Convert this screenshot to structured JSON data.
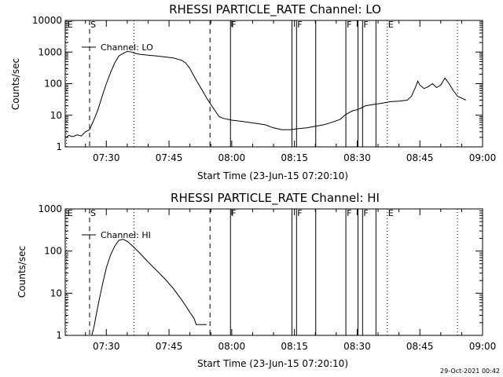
{
  "chart_data": [
    {
      "type": "line",
      "title": "RHESSI PARTICLE_RATE Channel: LO",
      "xlabel": "Start Time (23-Jun-15 07:20:10)",
      "ylabel": "Counts/sec",
      "yscale": "log",
      "ylim": [
        1,
        10000
      ],
      "xlim_minutes": [
        20.17,
        120.0
      ],
      "x_ticks": [
        {
          "label": "07:30",
          "v": 30
        },
        {
          "label": "07:45",
          "v": 45
        },
        {
          "label": "08:00",
          "v": 60
        },
        {
          "label": "08:15",
          "v": 75
        },
        {
          "label": "08:30",
          "v": 90
        },
        {
          "label": "08:45",
          "v": 105
        },
        {
          "label": "09:00",
          "v": 120
        }
      ],
      "y_ticks": [
        {
          "label": "1",
          "v": 1
        },
        {
          "label": "10",
          "v": 10
        },
        {
          "label": "100",
          "v": 100
        },
        {
          "label": "1000",
          "v": 1000
        },
        {
          "label": "10000",
          "v": 10000
        }
      ],
      "legend": {
        "label": "Channel: LO",
        "position": "top-left"
      },
      "series": [
        {
          "name": "Channel: LO",
          "x": [
            20.3,
            21,
            22,
            23,
            24,
            25,
            26,
            26.5,
            27,
            28,
            29,
            30,
            31,
            32,
            33,
            34,
            35,
            36,
            37,
            38,
            40,
            42,
            44,
            46,
            47,
            48,
            49,
            50,
            51,
            52,
            53,
            54,
            55,
            56,
            57,
            58,
            60,
            62,
            64,
            66,
            68,
            70,
            72,
            74,
            76,
            78,
            80,
            82,
            84,
            86,
            87,
            88,
            89,
            90,
            91,
            92,
            94,
            96,
            98,
            100,
            102,
            103,
            104,
            104.5,
            105,
            106,
            107,
            108,
            109,
            110,
            111,
            112,
            113,
            114,
            115,
            116
          ],
          "values": [
            2.0,
            2.3,
            2.1,
            2.4,
            2.2,
            3.0,
            3.5,
            5.0,
            7.0,
            15,
            40,
            100,
            220,
            450,
            750,
            900,
            1050,
            1000,
            900,
            850,
            800,
            750,
            700,
            650,
            600,
            550,
            450,
            300,
            170,
            100,
            60,
            35,
            22,
            14,
            9,
            8,
            7,
            6.5,
            6,
            5.5,
            5,
            4.0,
            3.5,
            3.5,
            3.8,
            4.0,
            4.5,
            5.0,
            6.0,
            7.5,
            10,
            12,
            14,
            15,
            17,
            20,
            22,
            24,
            27,
            28,
            30,
            40,
            80,
            120,
            90,
            70,
            80,
            100,
            75,
            90,
            150,
            100,
            60,
            40,
            35,
            30
          ]
        }
      ],
      "flag_lines": [
        {
          "label": "E",
          "x": 20.5,
          "style": "dotted"
        },
        {
          "label": "S",
          "x": 26.0,
          "style": "dashed"
        },
        {
          "label": "",
          "x": 36.6,
          "style": "dotted"
        },
        {
          "label": "",
          "x": 54.8,
          "style": "dashed"
        },
        {
          "label": "F",
          "x": 59.7,
          "style": "solid"
        },
        {
          "label": "",
          "x": 74.4,
          "style": "solid"
        },
        {
          "label": "F",
          "x": 75.5,
          "style": "solid"
        },
        {
          "label": "",
          "x": 80.1,
          "style": "solid"
        },
        {
          "label": "F",
          "x": 87.3,
          "style": "solid"
        },
        {
          "label": "",
          "x": 90.2,
          "style": "solid"
        },
        {
          "label": "F",
          "x": 91.3,
          "style": "solid"
        },
        {
          "label": "",
          "x": 94.5,
          "style": "solid"
        },
        {
          "label": "E",
          "x": 97.2,
          "style": "dotted"
        },
        {
          "label": "",
          "x": 114.0,
          "style": "dotted"
        }
      ]
    },
    {
      "type": "line",
      "title": "RHESSI PARTICLE_RATE Channel: HI",
      "xlabel": "Start Time (23-Jun-15 07:20:10)",
      "ylabel": "Counts/sec",
      "yscale": "log",
      "ylim": [
        1,
        1000
      ],
      "xlim_minutes": [
        20.17,
        120.0
      ],
      "x_ticks": [
        {
          "label": "07:30",
          "v": 30
        },
        {
          "label": "07:45",
          "v": 45
        },
        {
          "label": "08:00",
          "v": 60
        },
        {
          "label": "08:15",
          "v": 75
        },
        {
          "label": "08:30",
          "v": 90
        },
        {
          "label": "08:45",
          "v": 105
        },
        {
          "label": "09:00",
          "v": 120
        }
      ],
      "y_ticks": [
        {
          "label": "1",
          "v": 1
        },
        {
          "label": "10",
          "v": 10
        },
        {
          "label": "100",
          "v": 100
        },
        {
          "label": "1000",
          "v": 1000
        }
      ],
      "legend": {
        "label": "Channel: HI",
        "position": "top-left"
      },
      "series": [
        {
          "name": "Channel: HI",
          "x": [
            26.5,
            27,
            28,
            29,
            30,
            31,
            32,
            33,
            34,
            35,
            36,
            38,
            40,
            42,
            44,
            46,
            48,
            49,
            50,
            51,
            51.5,
            52,
            53,
            54
          ],
          "values": [
            1.0,
            1.5,
            5,
            15,
            40,
            80,
            130,
            180,
            190,
            170,
            140,
            90,
            55,
            35,
            22,
            13,
            7,
            5,
            3.5,
            2.5,
            1.8,
            1.8,
            1.8,
            1.8
          ]
        }
      ],
      "flag_lines": [
        {
          "label": "E",
          "x": 20.5,
          "style": "dotted"
        },
        {
          "label": "S",
          "x": 26.0,
          "style": "dashed"
        },
        {
          "label": "",
          "x": 36.6,
          "style": "dotted"
        },
        {
          "label": "",
          "x": 54.8,
          "style": "dashed"
        },
        {
          "label": "F",
          "x": 59.7,
          "style": "solid"
        },
        {
          "label": "",
          "x": 74.4,
          "style": "solid"
        },
        {
          "label": "F",
          "x": 75.5,
          "style": "solid"
        },
        {
          "label": "",
          "x": 80.1,
          "style": "solid"
        },
        {
          "label": "F",
          "x": 87.3,
          "style": "solid"
        },
        {
          "label": "",
          "x": 90.2,
          "style": "solid"
        },
        {
          "label": "F",
          "x": 91.3,
          "style": "solid"
        },
        {
          "label": "",
          "x": 94.5,
          "style": "solid"
        },
        {
          "label": "E",
          "x": 97.2,
          "style": "dotted"
        },
        {
          "label": "",
          "x": 114.0,
          "style": "dotted"
        }
      ]
    }
  ],
  "footer": {
    "timestamp": "29-Oct-2021 00:42"
  }
}
